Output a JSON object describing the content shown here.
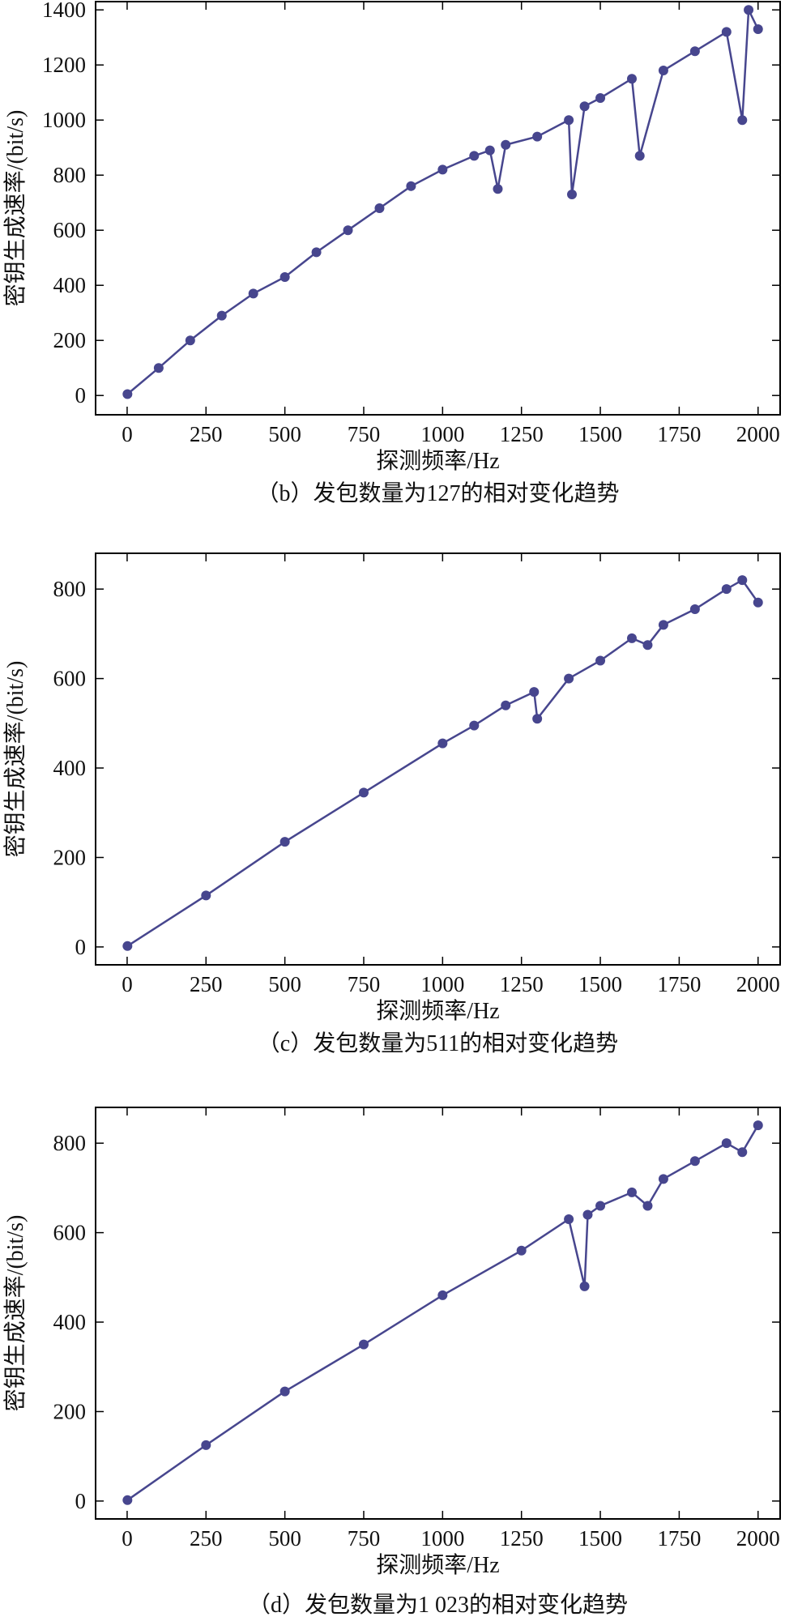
{
  "chart_data": [
    {
      "type": "line",
      "marker": "circle",
      "color": "#47468e",
      "caption": "（b）发包数量为127的相对变化趋势",
      "xlabel": "探测频率/Hz",
      "ylabel": "密钥生成速率/(bit/s)",
      "xlim": [
        -100,
        2070
      ],
      "ylim": [
        -70,
        1430
      ],
      "xticks": [
        0,
        250,
        500,
        750,
        1000,
        1250,
        1500,
        1750,
        2000
      ],
      "yticks": [
        0,
        200,
        400,
        600,
        800,
        1000,
        1200,
        1400
      ],
      "series": [
        {
          "x": [
            1,
            100,
            200,
            300,
            400,
            500,
            600,
            700,
            800,
            900,
            1000,
            1100,
            1150,
            1175,
            1200,
            1300,
            1400,
            1410,
            1450,
            1500,
            1600,
            1625,
            1700,
            1800,
            1900,
            1950,
            1970,
            2000
          ],
          "y": [
            5,
            100,
            200,
            290,
            370,
            430,
            520,
            600,
            680,
            760,
            820,
            870,
            890,
            750,
            910,
            940,
            1000,
            730,
            1050,
            1080,
            1150,
            870,
            1180,
            1250,
            1320,
            1000,
            1400,
            1330
          ]
        }
      ]
    },
    {
      "type": "line",
      "marker": "circle",
      "color": "#47468e",
      "caption": "（c）发包数量为511的相对变化趋势",
      "xlabel": "探测频率/Hz",
      "ylabel": "密钥生成速率/(bit/s)",
      "xlim": [
        -100,
        2070
      ],
      "ylim": [
        -40,
        880
      ],
      "xticks": [
        0,
        250,
        500,
        750,
        1000,
        1250,
        1500,
        1750,
        2000
      ],
      "yticks": [
        0,
        200,
        400,
        600,
        800
      ],
      "series": [
        {
          "x": [
            1,
            250,
            500,
            750,
            1000,
            1100,
            1200,
            1290,
            1300,
            1400,
            1500,
            1600,
            1650,
            1700,
            1800,
            1900,
            1950,
            2000
          ],
          "y": [
            2,
            115,
            235,
            345,
            455,
            495,
            540,
            570,
            510,
            600,
            640,
            690,
            675,
            720,
            755,
            800,
            820,
            770
          ]
        }
      ]
    },
    {
      "type": "line",
      "marker": "circle",
      "color": "#47468e",
      "caption": "（d）发包数量为1 023的相对变化趋势",
      "xlabel": "探测频率/Hz",
      "ylabel": "密钥生成速率/(bit/s)",
      "xlim": [
        -100,
        2070
      ],
      "ylim": [
        -40,
        880
      ],
      "xticks": [
        0,
        250,
        500,
        750,
        1000,
        1250,
        1500,
        1750,
        2000
      ],
      "yticks": [
        0,
        200,
        400,
        600,
        800
      ],
      "series": [
        {
          "x": [
            1,
            250,
            500,
            750,
            1000,
            1250,
            1400,
            1450,
            1460,
            1500,
            1600,
            1650,
            1700,
            1800,
            1900,
            1950,
            2000
          ],
          "y": [
            2,
            125,
            245,
            350,
            460,
            560,
            630,
            480,
            640,
            660,
            690,
            660,
            720,
            760,
            800,
            780,
            840
          ]
        }
      ]
    }
  ]
}
